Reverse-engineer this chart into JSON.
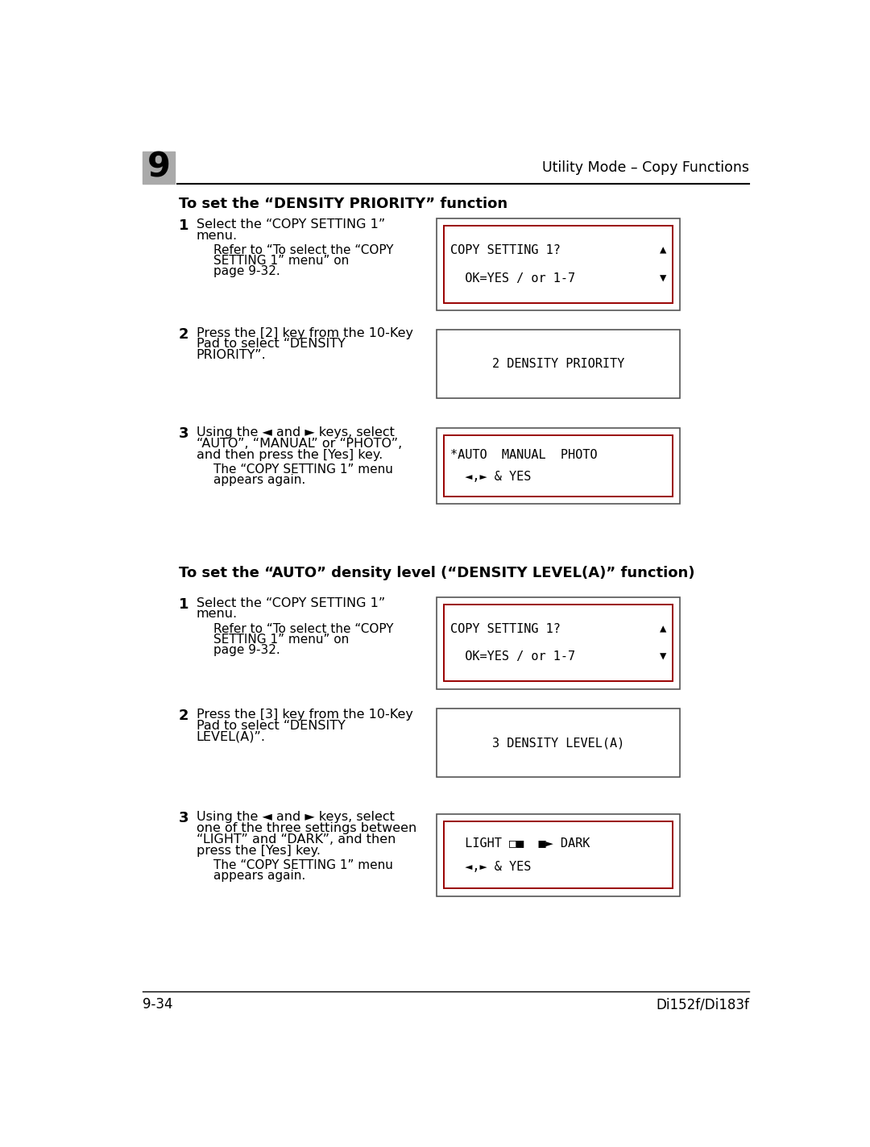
{
  "page_number": "9-34",
  "page_right_text": "Di152f/Di183f",
  "header_number": "9",
  "header_right": "Utility Mode - Copy Functions",
  "section1_title": "To set the “DENSITY PRIORITY” function",
  "section2_title": "To set the “AUTO” density level (“DENSITY LEVEL(A)” function)",
  "steps": [
    {
      "section": 1,
      "number": "1",
      "main_text_lines": [
        "Select the “COPY SETTING 1”",
        "menu."
      ],
      "sub_text_lines": [
        "Refer to “To select the “COPY",
        "SETTING 1” menu” on",
        "page 9-32."
      ],
      "box_line1": "COPY SETTING 1?",
      "box_line2": "  OK=YES / or 1-7",
      "box_arrows": true,
      "single_line_box": false
    },
    {
      "section": 1,
      "number": "2",
      "main_text_lines": [
        "Press the [2] key from the 10-Key",
        "Pad to select “DENSITY",
        "PRIORITY”."
      ],
      "sub_text_lines": [],
      "box_line1": "2 DENSITY PRIORITY",
      "box_line2": "",
      "box_arrows": false,
      "single_line_box": true
    },
    {
      "section": 1,
      "number": "3",
      "main_text_lines": [
        "Using the ◄ and ► keys, select",
        "“AUTO”, “MANUAL” or “PHOTO”,",
        "and then press the [Yes] key."
      ],
      "sub_text_lines": [
        "The “COPY SETTING 1” menu",
        "appears again."
      ],
      "box_line1": "*AUTO  MANUAL  PHOTO",
      "box_line2": "  ◄,► & YES",
      "box_arrows": false,
      "single_line_box": false
    },
    {
      "section": 2,
      "number": "1",
      "main_text_lines": [
        "Select the “COPY SETTING 1”",
        "menu."
      ],
      "sub_text_lines": [
        "Refer to “To select the “COPY",
        "SETTING 1” menu” on",
        "page 9-32."
      ],
      "box_line1": "COPY SETTING 1?",
      "box_line2": "  OK=YES / or 1-7",
      "box_arrows": true,
      "single_line_box": false
    },
    {
      "section": 2,
      "number": "2",
      "main_text_lines": [
        "Press the [3] key from the 10-Key",
        "Pad to select “DENSITY",
        "LEVEL(A)”."
      ],
      "sub_text_lines": [],
      "box_line1": "3 DENSITY LEVEL(A)",
      "box_line2": "",
      "box_arrows": false,
      "single_line_box": true
    },
    {
      "section": 2,
      "number": "3",
      "main_text_lines": [
        "Using the ◄ and ► keys, select",
        "one of the three settings between",
        "“LIGHT” and “DARK”, and then",
        "press the [Yes] key."
      ],
      "sub_text_lines": [
        "The “COPY SETTING 1” menu",
        "appears again."
      ],
      "box_line1": "  LIGHT □■  ■► DARK",
      "box_line2": "  ◄,► & YES",
      "box_arrows": false,
      "single_line_box": false
    }
  ]
}
